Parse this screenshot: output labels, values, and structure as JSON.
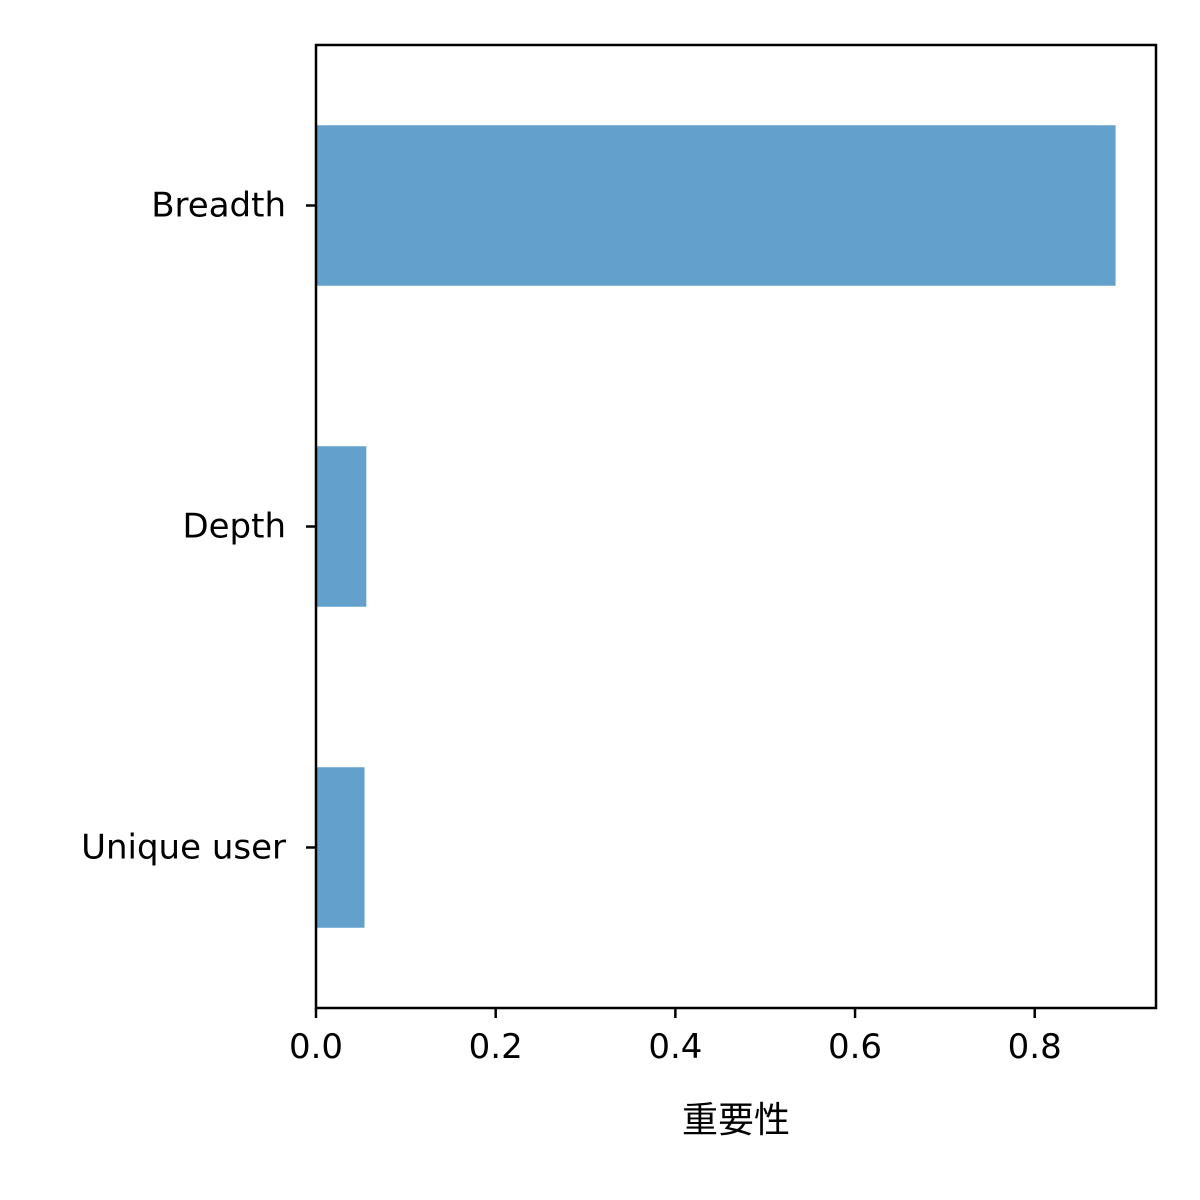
{
  "chart_data": {
    "type": "bar",
    "orientation": "horizontal",
    "categories": [
      "Breadth",
      "Depth",
      "Unique user"
    ],
    "values": [
      0.89,
      0.056,
      0.054
    ],
    "xlabel": "重要性",
    "ylabel": "",
    "xlim": [
      0,
      0.935
    ],
    "xticks": [
      "0.0",
      "0.2",
      "0.4",
      "0.6",
      "0.8"
    ],
    "grid": false,
    "legend": "none",
    "bar_color": "#63a0cb"
  }
}
